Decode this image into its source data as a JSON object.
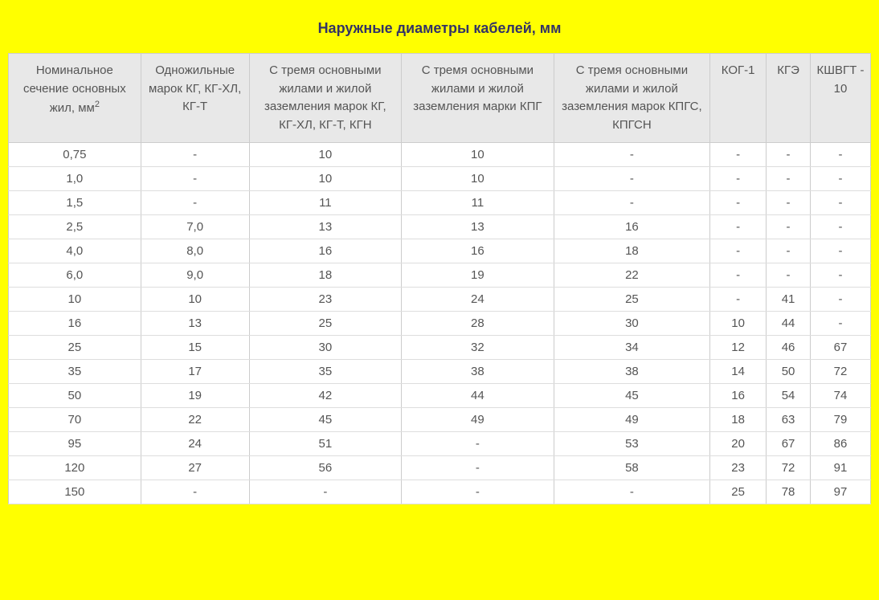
{
  "title": "Наружные диаметры кабелей, мм",
  "table": {
    "columns": [
      {
        "label_html": "Номинальное сечение основных жил, мм<span class='sup'>2</span>"
      },
      {
        "label": "Одножильные марок КГ, КГ-ХЛ, КГ-Т"
      },
      {
        "label": "С тремя основными жилами и жилой заземления марок КГ, КГ-ХЛ, КГ-Т, КГН"
      },
      {
        "label": "С тремя основными жилами и жилой заземления марки КПГ"
      },
      {
        "label": "С тремя основными жилами и жилой заземления марок КПГС, КПГСН"
      },
      {
        "label": "КОГ-1"
      },
      {
        "label": "КГЭ"
      },
      {
        "label": "КШВГТ - 10"
      }
    ],
    "rows": [
      [
        "0,75",
        "-",
        "10",
        "10",
        "-",
        "-",
        "-",
        "-"
      ],
      [
        "1,0",
        "-",
        "10",
        "10",
        "-",
        "-",
        "-",
        "-"
      ],
      [
        "1,5",
        "-",
        "11",
        "11",
        "-",
        "-",
        "-",
        "-"
      ],
      [
        "2,5",
        "7,0",
        "13",
        "13",
        "16",
        "-",
        "-",
        "-"
      ],
      [
        "4,0",
        "8,0",
        "16",
        "16",
        "18",
        "-",
        "-",
        "-"
      ],
      [
        "6,0",
        "9,0",
        "18",
        "19",
        "22",
        "-",
        "-",
        "-"
      ],
      [
        "10",
        "10",
        "23",
        "24",
        "25",
        "-",
        "41",
        "-"
      ],
      [
        "16",
        "13",
        "25",
        "28",
        "30",
        "10",
        "44",
        "-"
      ],
      [
        "25",
        "15",
        "30",
        "32",
        "34",
        "12",
        "46",
        "67"
      ],
      [
        "35",
        "17",
        "35",
        "38",
        "38",
        "14",
        "50",
        "72"
      ],
      [
        "50",
        "19",
        "42",
        "44",
        "45",
        "16",
        "54",
        "74"
      ],
      [
        "70",
        "22",
        "45",
        "49",
        "49",
        "18",
        "63",
        "79"
      ],
      [
        "95",
        "24",
        "51",
        "-",
        "53",
        "20",
        "67",
        "86"
      ],
      [
        "120",
        "27",
        "56",
        "-",
        "58",
        "23",
        "72",
        "91"
      ],
      [
        "150",
        "-",
        "-",
        "-",
        "-",
        "25",
        "78",
        "97"
      ]
    ]
  },
  "styling": {
    "background_color": "#ffff00",
    "table_background": "#ffffff",
    "header_background": "#e8e8e8",
    "border_color": "#cccccc",
    "text_color": "#555555",
    "title_color": "#333366",
    "font_family": "Arial",
    "title_fontsize": 18,
    "header_fontsize": 15,
    "cell_fontsize": 15
  }
}
